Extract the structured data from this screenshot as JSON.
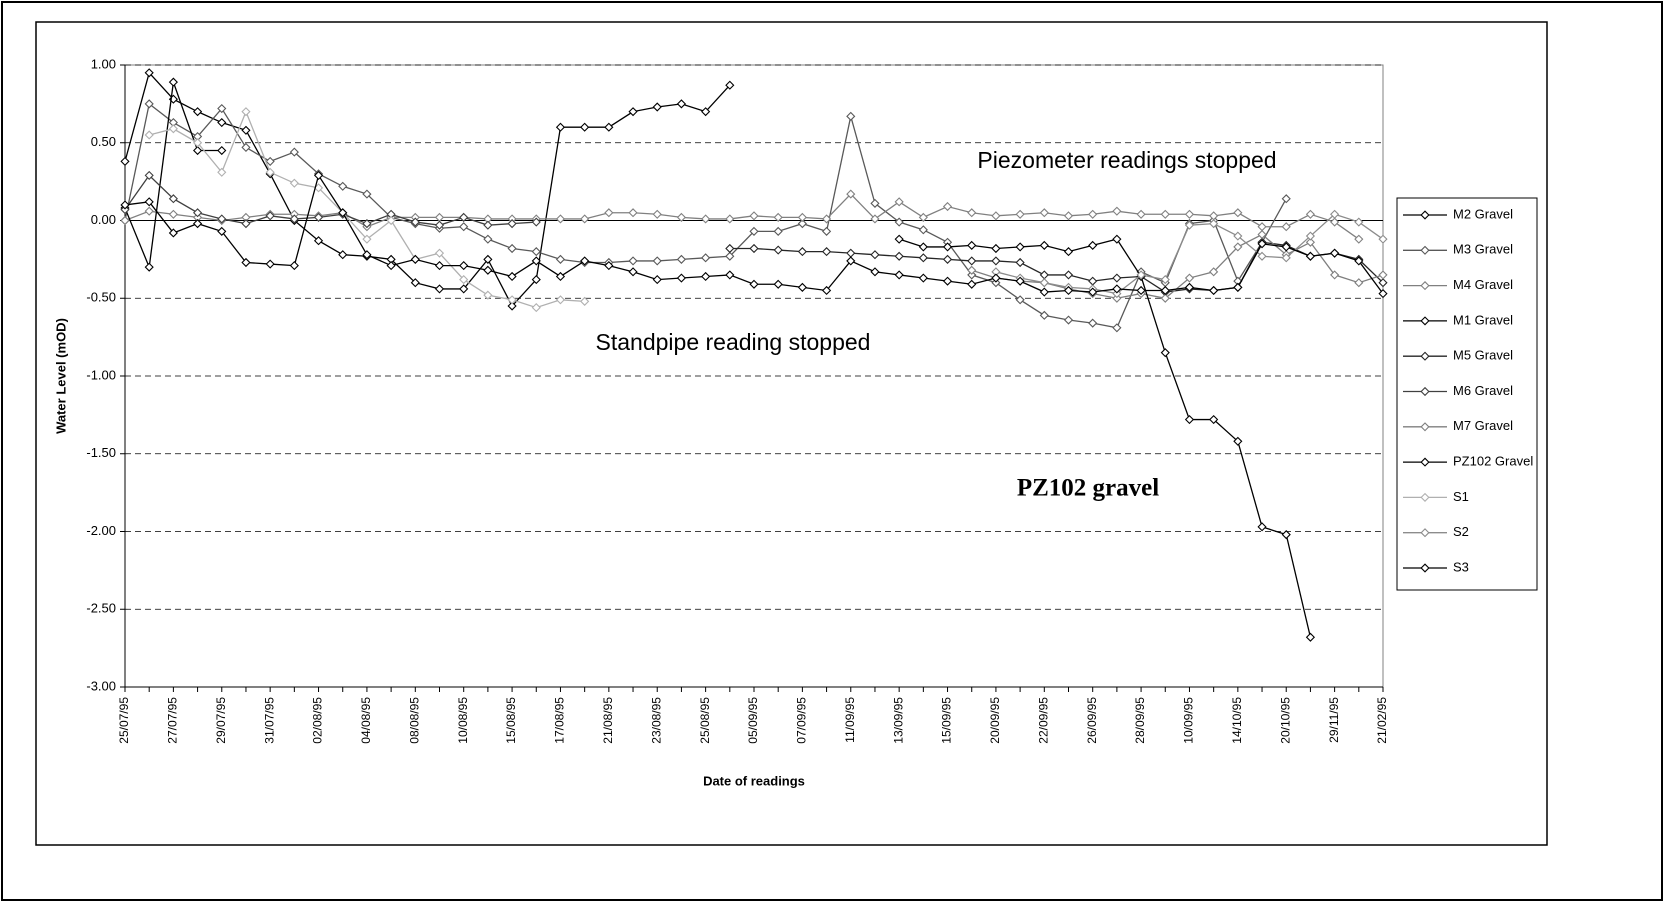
{
  "chart_data": {
    "type": "line",
    "y_label": "Water Level (mOD)",
    "x_label": "Date of readings",
    "annotations": [
      "Piezometer readings stopped",
      "Standpipe reading stopped",
      "PZ102 gravel"
    ],
    "categories": [
      "25/07/95",
      null,
      "27/07/95",
      null,
      "29/07/95",
      null,
      "31/07/95",
      null,
      "02/08/95",
      null,
      "04/08/95",
      null,
      "08/08/95",
      null,
      "10/08/95",
      null,
      "15/08/95",
      null,
      "17/08/95",
      null,
      "21/08/95",
      null,
      "23/08/95",
      null,
      "25/08/95",
      null,
      "05/09/95",
      null,
      "07/09/95",
      null,
      "11/09/95",
      null,
      "13/09/95",
      null,
      "15/09/95",
      null,
      "20/09/95",
      null,
      "22/09/95",
      null,
      "26/09/95",
      null,
      "28/09/95",
      null,
      "10/09/95",
      null,
      "14/10/95",
      null,
      "20/10/95",
      null,
      "29/11/95",
      null,
      "21/02/95"
    ],
    "ylim": [
      -3,
      1
    ],
    "yticks": [
      {
        "value": 1,
        "label": "1.00"
      },
      {
        "value": 0.5,
        "label": "0.50"
      },
      {
        "value": 0,
        "label": "0.00"
      },
      {
        "value": -0.5,
        "label": "-0.50"
      },
      {
        "value": -1,
        "label": "-1.00"
      },
      {
        "value": -1.5,
        "label": "-1.50"
      },
      {
        "value": -2,
        "label": "-2.00"
      },
      {
        "value": -2.5,
        "label": "-2.50"
      },
      {
        "value": -3,
        "label": "-3.00"
      }
    ],
    "grid": true,
    "legend": "right",
    "series": [
      {
        "name": "M2 Gravel",
        "color": "#000000",
        "values": [
          0.38,
          0.95,
          0.78,
          0.7,
          0.63,
          0.58,
          0.3,
          0.0,
          -0.13,
          -0.22,
          -0.23,
          -0.25,
          -0.4,
          -0.44,
          -0.44,
          -0.25,
          -0.55,
          -0.38,
          0.6,
          0.6,
          0.6,
          0.7,
          0.73,
          0.75,
          0.7,
          0.87,
          null,
          null,
          null,
          null,
          null,
          null,
          null,
          null,
          null,
          null,
          null,
          null,
          null,
          null,
          null,
          null,
          null,
          null,
          null,
          null,
          null,
          null,
          null,
          null,
          null,
          null,
          null
        ]
      },
      {
        "name": "M3 Gravel",
        "color": "#595959",
        "values": [
          0.0,
          0.75,
          0.63,
          0.54,
          0.72,
          0.47,
          0.38,
          0.44,
          0.3,
          0.22,
          0.17,
          0.02,
          -0.02,
          -0.05,
          -0.04,
          -0.12,
          -0.18,
          -0.2,
          -0.25,
          -0.27,
          -0.27,
          -0.26,
          -0.26,
          -0.25,
          -0.24,
          -0.23,
          -0.07,
          -0.07,
          -0.02,
          -0.07,
          0.67,
          0.11,
          -0.01,
          -0.06,
          -0.14,
          -0.35,
          -0.4,
          -0.51,
          -0.61,
          -0.64,
          -0.66,
          -0.69,
          -0.33,
          -0.4,
          -0.02,
          0.0,
          -0.39,
          -0.14,
          0.14,
          null,
          null,
          null,
          null
        ]
      },
      {
        "name": "M4 Gravel",
        "color": "#808080",
        "values": [
          0.0,
          0.06,
          0.04,
          0.02,
          0.0,
          0.02,
          0.04,
          0.04,
          0.03,
          0.05,
          -0.04,
          0.02,
          0.02,
          0.02,
          0.02,
          0.01,
          0.01,
          0.01,
          0.01,
          0.01,
          0.05,
          0.05,
          0.04,
          0.02,
          0.01,
          0.01,
          0.03,
          0.02,
          0.02,
          0.01,
          0.17,
          0.01,
          0.12,
          0.02,
          0.09,
          0.05,
          0.03,
          0.04,
          0.05,
          0.03,
          0.04,
          0.06,
          0.04,
          0.04,
          0.04,
          0.03,
          0.05,
          -0.04,
          -0.04,
          0.04,
          -0.01,
          -0.12,
          null
        ]
      },
      {
        "name": "M1 Gravel",
        "color": "#000000",
        "values": [
          0.08,
          -0.3,
          0.89,
          0.45,
          0.45,
          null,
          null,
          null,
          null,
          null,
          null,
          null,
          null,
          null,
          null,
          null,
          null,
          null,
          null,
          null,
          null,
          null,
          null,
          null,
          null,
          null,
          null,
          null,
          null,
          null,
          null,
          null,
          null,
          null,
          null,
          null,
          null,
          null,
          null,
          null,
          null,
          null,
          null,
          null,
          null,
          null,
          null,
          null,
          null,
          null,
          null,
          null,
          null
        ]
      },
      {
        "name": "M5 Gravel",
        "color": "#262626",
        "values": [
          null,
          null,
          null,
          null,
          null,
          null,
          null,
          null,
          null,
          null,
          null,
          null,
          null,
          null,
          null,
          null,
          null,
          null,
          null,
          null,
          null,
          null,
          null,
          null,
          null,
          -0.18,
          -0.18,
          -0.19,
          -0.2,
          -0.2,
          -0.21,
          -0.22,
          -0.23,
          -0.24,
          -0.25,
          -0.26,
          -0.26,
          -0.27,
          -0.35,
          -0.35,
          -0.39,
          -0.37,
          -0.36,
          -0.46,
          -0.44,
          -0.45,
          -0.43,
          -0.14,
          -0.16,
          -0.23,
          -0.21,
          -0.25,
          -0.4
        ]
      },
      {
        "name": "M6 Gravel",
        "color": "#404040",
        "values": [
          0.07,
          0.29,
          0.14,
          0.05,
          0.01,
          -0.02,
          0.03,
          0.01,
          0.02,
          0.04,
          -0.02,
          0.04,
          -0.01,
          -0.03,
          0.02,
          -0.03,
          -0.02,
          -0.01,
          null,
          null,
          null,
          null,
          null,
          null,
          null,
          null,
          null,
          null,
          null,
          null,
          null,
          null,
          null,
          null,
          null,
          null,
          null,
          null,
          null,
          null,
          null,
          null,
          null,
          null,
          null,
          null,
          null,
          null,
          null,
          null,
          null,
          null,
          null
        ]
      },
      {
        "name": "M7 Gravel",
        "color": "#7f7f7f",
        "values": [
          null,
          null,
          null,
          null,
          null,
          null,
          null,
          null,
          null,
          null,
          null,
          null,
          null,
          null,
          null,
          null,
          null,
          null,
          null,
          null,
          null,
          null,
          null,
          null,
          null,
          null,
          null,
          null,
          null,
          null,
          null,
          null,
          null,
          null,
          null,
          -0.32,
          -0.37,
          -0.39,
          -0.4,
          -0.44,
          -0.47,
          -0.5,
          -0.47,
          -0.5,
          -0.37,
          -0.33,
          -0.17,
          -0.09,
          -0.22,
          -0.14,
          -0.35,
          -0.4,
          -0.35
        ]
      },
      {
        "name": "PZ102 Gravel",
        "color": "#000000",
        "values": [
          null,
          null,
          null,
          null,
          null,
          null,
          null,
          null,
          null,
          null,
          null,
          null,
          null,
          null,
          null,
          null,
          null,
          null,
          null,
          null,
          null,
          null,
          null,
          null,
          null,
          null,
          null,
          null,
          null,
          null,
          null,
          null,
          -0.12,
          -0.17,
          -0.17,
          -0.16,
          -0.18,
          -0.17,
          -0.16,
          -0.2,
          -0.16,
          -0.12,
          -0.36,
          -0.85,
          -1.28,
          -1.28,
          -1.42,
          -1.97,
          -2.02,
          -2.68,
          null,
          null,
          null
        ]
      },
      {
        "name": "S1",
        "color": "#b0b0b0",
        "values": [
          null,
          0.55,
          0.59,
          0.5,
          0.31,
          0.7,
          0.31,
          0.24,
          0.21,
          0.05,
          -0.12,
          0.0,
          -0.25,
          -0.21,
          -0.38,
          -0.48,
          -0.51,
          -0.56,
          -0.51,
          -0.52,
          null,
          null,
          null,
          null,
          null,
          null,
          null,
          null,
          null,
          null,
          null,
          null,
          null,
          null,
          null,
          null,
          null,
          null,
          null,
          null,
          null,
          null,
          null,
          null,
          null,
          null,
          null,
          null,
          null,
          null,
          null,
          null,
          null
        ]
      },
      {
        "name": "S2",
        "color": "#8c8c8c",
        "values": [
          null,
          null,
          null,
          null,
          null,
          null,
          null,
          null,
          null,
          null,
          null,
          null,
          null,
          null,
          null,
          null,
          null,
          null,
          null,
          null,
          null,
          null,
          null,
          null,
          null,
          null,
          null,
          null,
          null,
          null,
          null,
          null,
          null,
          null,
          null,
          null,
          -0.33,
          -0.37,
          -0.4,
          -0.43,
          -0.44,
          -0.47,
          -0.35,
          -0.38,
          -0.03,
          -0.02,
          -0.1,
          -0.23,
          -0.24,
          -0.1,
          0.04,
          -0.01,
          -0.12
        ]
      },
      {
        "name": "S3",
        "color": "#000000",
        "values": [
          0.1,
          0.12,
          -0.08,
          -0.02,
          -0.07,
          -0.27,
          -0.28,
          -0.29,
          0.29,
          0.05,
          -0.22,
          -0.29,
          -0.25,
          -0.29,
          -0.29,
          -0.32,
          -0.36,
          -0.26,
          -0.36,
          -0.26,
          -0.29,
          -0.33,
          -0.38,
          -0.37,
          -0.36,
          -0.35,
          -0.41,
          -0.41,
          -0.43,
          -0.45,
          -0.26,
          -0.33,
          -0.35,
          -0.37,
          -0.39,
          -0.41,
          -0.37,
          -0.39,
          -0.46,
          -0.45,
          -0.46,
          -0.44,
          -0.45,
          -0.45,
          -0.43,
          -0.45,
          -0.43,
          -0.15,
          -0.17,
          -0.23,
          -0.21,
          -0.26,
          -0.47
        ]
      }
    ]
  }
}
